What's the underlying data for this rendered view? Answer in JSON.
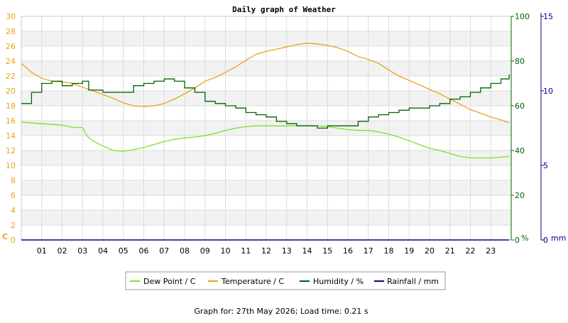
{
  "chart_data": {
    "type": "line",
    "title": "Daily graph of Weather",
    "footer": "Graph for: 27th May 2026; Load time: 0.21 s",
    "x": {
      "tick_labels": [
        "01",
        "02",
        "03",
        "04",
        "05",
        "06",
        "07",
        "08",
        "09",
        "10",
        "11",
        "12",
        "13",
        "14",
        "15",
        "16",
        "17",
        "18",
        "19",
        "20",
        "21",
        "22",
        "23"
      ],
      "range": [
        0,
        24
      ]
    },
    "axes": {
      "left": {
        "unit_label": "C",
        "color": "#e8a317",
        "range": [
          0,
          30
        ],
        "tick_labels": [
          "0",
          "2",
          "4",
          "6",
          "8",
          "10",
          "12",
          "14",
          "16",
          "18",
          "20",
          "22",
          "24",
          "26",
          "28",
          "30"
        ]
      },
      "humidity": {
        "unit_label": "%",
        "color": "#006400",
        "range": [
          0,
          100
        ],
        "tick_labels": [
          "0",
          "20",
          "40",
          "60",
          "80",
          "100"
        ]
      },
      "rain": {
        "unit_label": "mm",
        "color": "#00008b",
        "range": [
          0,
          15
        ],
        "tick_labels": [
          "0",
          "5",
          "10",
          "15"
        ]
      }
    },
    "grid": true,
    "legend_position": "bottom",
    "series": [
      {
        "name": "Dew Point / C",
        "axis": "left",
        "color": "#7ce02a",
        "x": [
          0,
          0.5,
          1,
          1.5,
          2,
          2.5,
          3,
          3.2,
          3.5,
          4,
          4.5,
          5,
          5.5,
          6,
          6.5,
          7,
          7.5,
          8,
          8.5,
          9,
          9.5,
          10,
          10.5,
          11,
          11.5,
          12,
          12.5,
          13,
          13.5,
          14,
          14.5,
          15,
          15.5,
          16,
          16.5,
          17,
          17.5,
          18,
          18.5,
          19,
          19.5,
          20,
          20.5,
          21,
          21.5,
          22,
          22.5,
          23,
          23.5,
          23.9
        ],
        "values": [
          15.8,
          15.7,
          15.6,
          15.5,
          15.4,
          15.1,
          15.1,
          14.0,
          13.3,
          12.6,
          12.0,
          11.9,
          12.1,
          12.4,
          12.8,
          13.2,
          13.5,
          13.7,
          13.8,
          14.0,
          14.3,
          14.7,
          15.0,
          15.2,
          15.3,
          15.3,
          15.3,
          15.3,
          15.3,
          15.3,
          15.3,
          15.2,
          15.0,
          14.8,
          14.7,
          14.7,
          14.5,
          14.2,
          13.8,
          13.3,
          12.8,
          12.3,
          12.0,
          11.6,
          11.2,
          11.0,
          11.0,
          11.0,
          11.1,
          11.2
        ]
      },
      {
        "name": "Temperature / C",
        "axis": "left",
        "color": "#e8a317",
        "x": [
          0,
          0.5,
          1,
          1.5,
          2,
          2.5,
          3,
          3.5,
          4,
          4.5,
          5,
          5.5,
          6,
          6.5,
          7,
          7.5,
          8,
          8.5,
          9,
          9.5,
          10,
          10.5,
          11,
          11.5,
          12,
          12.5,
          13,
          13.5,
          14,
          14.5,
          15,
          15.5,
          16,
          16.5,
          17,
          17.5,
          18,
          18.5,
          19,
          19.5,
          20,
          20.5,
          21,
          21.5,
          22,
          22.5,
          23,
          23.5,
          23.9
        ],
        "values": [
          23.7,
          22.5,
          21.7,
          21.3,
          21.2,
          21.0,
          20.5,
          20.0,
          19.5,
          19.0,
          18.4,
          18.0,
          17.9,
          18.0,
          18.3,
          18.9,
          19.6,
          20.4,
          21.3,
          21.8,
          22.5,
          23.2,
          24.1,
          24.9,
          25.3,
          25.6,
          25.9,
          26.2,
          26.4,
          26.3,
          26.1,
          25.8,
          25.3,
          24.6,
          24.2,
          23.7,
          22.8,
          22.0,
          21.4,
          20.8,
          20.2,
          19.6,
          18.9,
          18.2,
          17.5,
          17.0,
          16.5,
          16.1,
          15.7
        ]
      },
      {
        "name": "Humidity / %",
        "axis": "humidity",
        "color": "#006400",
        "x": [
          0,
          0.5,
          1,
          1.5,
          2,
          2.5,
          3,
          3.3,
          4,
          4.5,
          5,
          5.5,
          6,
          6.5,
          7,
          7.5,
          8,
          8.5,
          9,
          9.5,
          10,
          10.5,
          11,
          11.5,
          12,
          12.5,
          13,
          13.5,
          14,
          14.5,
          15,
          15.5,
          16,
          16.5,
          17,
          17.5,
          18,
          18.5,
          19,
          19.5,
          20,
          20.5,
          21,
          21.5,
          22,
          22.5,
          23,
          23.5,
          23.9
        ],
        "values": [
          61,
          66,
          70,
          71,
          69,
          70,
          71,
          67,
          66,
          66,
          66,
          69,
          70,
          71,
          72,
          71,
          68,
          66,
          62,
          61,
          60,
          59,
          57,
          56,
          55,
          53,
          52,
          51,
          51,
          50,
          51,
          51,
          51,
          53,
          55,
          56,
          57,
          58,
          59,
          59,
          60,
          61,
          63,
          64,
          66,
          68,
          70,
          72,
          74
        ]
      },
      {
        "name": "Rainfall / mm",
        "axis": "rain",
        "color": "#00008b",
        "x": [
          0,
          23.9
        ],
        "values": [
          0,
          0
        ]
      }
    ]
  }
}
